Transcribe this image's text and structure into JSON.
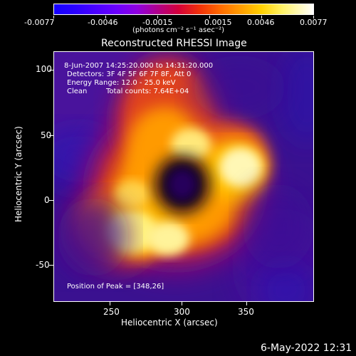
{
  "colorbar": {
    "tick_labels": [
      "-0.0077",
      "-0.0046",
      "-0.0015",
      "0.0015",
      "0.0046",
      "0.0077"
    ],
    "unit_label": "(photons cm⁻² s⁻¹ asec⁻²)"
  },
  "plot": {
    "title": "Reconstructed RHESSI Image",
    "annotations": {
      "line1": "8-Jun-2007 14:25:20.000 to 14:31:20.000",
      "line2": "Detectors: 3F 4F 5F 6F 7F 8F, Att 0",
      "line3": "Energy Range: 12.0 - 25.0 keV",
      "line4_left": "Clean",
      "line4_right": "Total counts: 7.64E+04",
      "peak": "Position of Peak = [348,26]"
    },
    "xlabel": "Heliocentric X (arcsec)",
    "ylabel": "Heliocentric Y (arcsec)",
    "xticks": [
      "250",
      "300",
      "350"
    ],
    "yticks": [
      "100",
      "50",
      "0",
      "-50"
    ],
    "xlim": [
      205,
      395
    ],
    "ylim": [
      -75,
      110
    ]
  },
  "footer": {
    "timestamp": "6-May-2022 12:31"
  },
  "colors": {
    "background": "#000000",
    "foreground": "#ffffff",
    "low": "#2a00ff",
    "mid": "#d4003a",
    "high": "#ffffff"
  }
}
